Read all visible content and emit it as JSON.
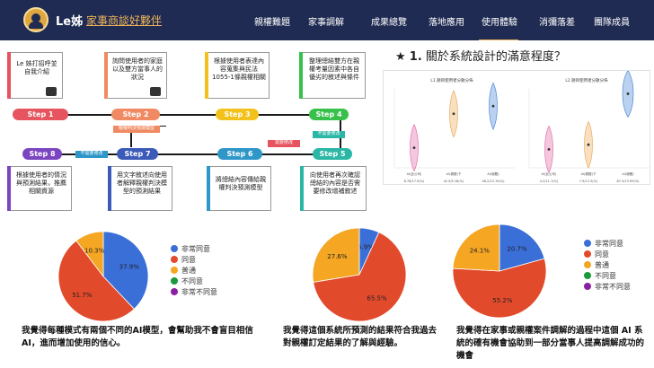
{
  "header": {
    "brand": "Le姊",
    "slogan": "家事商談好夥伴",
    "nav": [
      "親權難題",
      "家事調解",
      "成果總覽",
      "落地應用",
      "使用體驗",
      "消彌落差",
      "團隊成員"
    ],
    "active_nav": "使用體驗",
    "bg_color": "#1f2b52",
    "accent_color": "#f0b45a"
  },
  "flow": {
    "steps": [
      {
        "label": "Step 1",
        "color": "#e5545f"
      },
      {
        "label": "Step 2",
        "color": "#f08a62"
      },
      {
        "label": "Step 3",
        "color": "#f3c11c"
      },
      {
        "label": "Step 4",
        "color": "#37c14a"
      },
      {
        "label": "Step 5",
        "color": "#2ab7a6"
      },
      {
        "label": "Step 6",
        "color": "#2f97c8"
      },
      {
        "label": "Step 7",
        "color": "#3c5ab8"
      },
      {
        "label": "Step 8",
        "color": "#7b45c2"
      }
    ],
    "cards": [
      {
        "text": "Le 姊打招呼並自我介紹",
        "icon": "Hi"
      },
      {
        "text": "詢問使用者的家庭以及雙方當事人的狀況",
        "icon": "?"
      },
      {
        "text": "根據使用者表達內容蒐集與民法1055-1條親權相關",
        "icon": "doc"
      },
      {
        "text": "整理總結雙方在親權考量因素中各自優劣的敘述與條件",
        "icon": "list"
      },
      {
        "text": "向使用者再次確認總結的內容是否需要修改增補敘述",
        "icon": "edit"
      },
      {
        "text": "將總結內容傳給親權判決預測模型",
        "icon": "send"
      },
      {
        "text": "用文字敘述向使用者解釋親權判決模型的預測結果",
        "icon": "chart"
      },
      {
        "text": "根據使用者的情況與預測結果，推薦相關資源",
        "icon": "person"
      }
    ],
    "tags": {
      "need_edit": "需要修改",
      "no_edit": "不需要修改",
      "model": "親權判決預測模型"
    }
  },
  "question": {
    "star": "★",
    "number": "1.",
    "text": "關於系統設計的滿意程度？"
  },
  "chart_data": [
    {
      "type": "violin",
      "title": "L1 題目使用者分數分佈",
      "categories": [
        "AI(此公司)",
        "AI(親權)下",
        "AI(總體)"
      ],
      "medians": [
        1.3,
        3.5,
        4.0
      ],
      "colors": [
        "#e05fa0",
        "#e8a34a",
        "#3a7bd5"
      ],
      "xlabels": [
        "8.78/17.9(%)",
        "42.9/5.18(%)",
        "48.2/13.19(%)"
      ]
    },
    {
      "type": "violin",
      "title": "L2 題目使用者分數分佈",
      "categories": [
        "AI(此公司)",
        "AI(親權)下",
        "AI(總體)"
      ],
      "medians": [
        1.2,
        1.5,
        4.8
      ],
      "colors": [
        "#e05fa0",
        "#e8a34a",
        "#3a7bd5"
      ],
      "xlabels": [
        "4.2/11.7(%)",
        "7.9/13.3(%)",
        "87.3/13.99(%)"
      ]
    },
    {
      "type": "pie",
      "title": "",
      "categories": [
        "非常同意",
        "同意",
        "普通",
        "不同意",
        "非常不同意"
      ],
      "values": [
        37.9,
        51.7,
        10.3,
        0,
        0
      ],
      "colors": [
        "#3a6fd8",
        "#e24a2c",
        "#f5a623",
        "#1a9a3a",
        "#8b1fa2"
      ]
    },
    {
      "type": "pie",
      "title": "",
      "categories": [
        "非常同意",
        "同意",
        "普通",
        "不同意",
        "非常不同意"
      ],
      "values": [
        6.9,
        65.5,
        27.6,
        0,
        0
      ],
      "colors": [
        "#3a6fd8",
        "#e24a2c",
        "#f5a623",
        "#1a9a3a",
        "#8b1fa2"
      ]
    },
    {
      "type": "pie",
      "title": "",
      "categories": [
        "非常同意",
        "同意",
        "普通",
        "不同意",
        "非常不同意"
      ],
      "values": [
        20.7,
        55.2,
        24.1,
        0,
        0
      ],
      "colors": [
        "#3a6fd8",
        "#e24a2c",
        "#f5a623",
        "#1a9a3a",
        "#8b1fa2"
      ]
    }
  ],
  "pie_captions": [
    "我覺得每種模式有兩個不同的AI模型，會幫助我不會盲目相信AI，進而增加使用的信心。",
    "我覺得這個系統所預測的結果符合我過去對親權訂定結果的了解與經驗。",
    "我覺得在家事或親權案件調解的過程中這個 AI 系統的確有機會協助到一部分當事人提高調解成功的機會"
  ]
}
